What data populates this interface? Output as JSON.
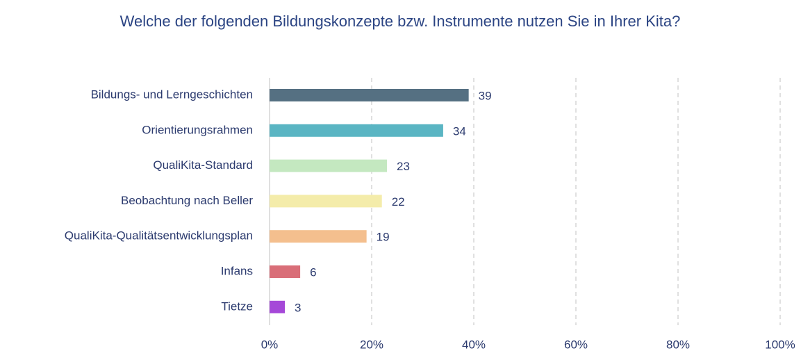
{
  "chart_data": {
    "type": "bar",
    "orientation": "horizontal",
    "title": "Welche der folgenden Bildungskonzepte bzw. Instrumente nutzen Sie in Ihrer Kita?",
    "categories": [
      "Bildungs- und Lerngeschichten",
      "Orientierungsrahmen",
      "QualiKita-Standard",
      "Beobachtung nach Beller",
      "QualiKita-Qualitätsentwicklungsplan",
      "Infans",
      "Tietze"
    ],
    "values": [
      39,
      34,
      23,
      22,
      19,
      6,
      3
    ],
    "colors": [
      "#557082",
      "#5ab5c3",
      "#c4e8c0",
      "#f4ecaa",
      "#f4bf8e",
      "#d96e78",
      "#a548d8"
    ],
    "xlim": [
      0,
      100
    ],
    "xticks": [
      {
        "value": 0,
        "label": "0%"
      },
      {
        "value": 20,
        "label": "20%"
      },
      {
        "value": 40,
        "label": "40%"
      },
      {
        "value": 60,
        "label": "60%"
      },
      {
        "value": 80,
        "label": "80%"
      },
      {
        "value": 100,
        "label": "100%"
      }
    ],
    "grid": true
  }
}
